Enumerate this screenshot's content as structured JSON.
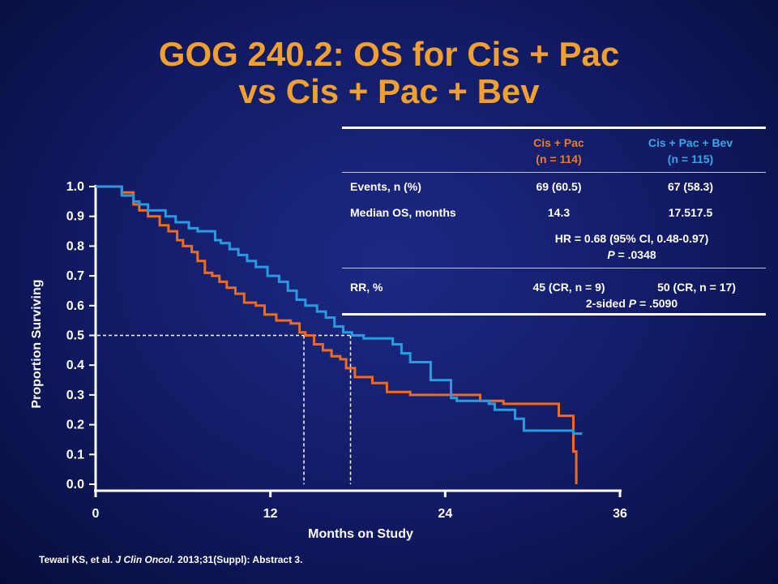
{
  "title": {
    "line1": "GOG 240.2: OS for Cis + Pac",
    "line2": "vs Cis + Pac + Bev"
  },
  "colors": {
    "title": "#f0a030",
    "cis_pac": "#f06a20",
    "cis_pac_bev": "#2a9ae0",
    "background": "#111a63"
  },
  "table": {
    "col1_header": [
      "Cis + Pac",
      "(n = 114)"
    ],
    "col2_header": [
      "Cis + Pac + Bev",
      "(n = 115)"
    ],
    "events_label": "Events, n (%)",
    "events_cp": "69 (60.5)",
    "events_cpb": "67 (58.3)",
    "median_label": "Median OS, months",
    "median_cp": "14.3",
    "median_cpb": "17.517.5",
    "hr_text": "HR = 0.68 (95% CI, 0.48-0.97)",
    "p_label": "P",
    "p_value": " = .0348",
    "rr_label": "RR, %",
    "rr_cp": "45 (CR, n = 9)",
    "rr_cpb": "50 (CR, n = 17)",
    "rr_p_prefix": "2-sided ",
    "rr_p_label": "P",
    "rr_p_value": " = .5090"
  },
  "citation": {
    "authors": "Tewari KS, et al. ",
    "journal": "J Clin Oncol.",
    "rest": " 2013;31(Suppl): Abstract 3."
  },
  "chart_data": {
    "type": "line",
    "xlabel": "Months on Study",
    "ylabel": "Proportion Surviving",
    "xlim": [
      0,
      36
    ],
    "ylim": [
      0,
      1.0
    ],
    "x_ticks": [
      "0",
      "12",
      "24",
      "36"
    ],
    "y_ticks": [
      "0.0",
      "0.1",
      "0.2",
      "0.3",
      "0.4",
      "0.5",
      "0.6",
      "0.7",
      "0.8",
      "0.9",
      "1.0"
    ],
    "median_lines": [
      {
        "series": "Cis + Pac",
        "x": 14.3,
        "y": 0.5
      },
      {
        "series": "Cis + Pac + Bev",
        "x": 17.5,
        "y": 0.5
      }
    ],
    "series": [
      {
        "name": "Cis + Pac",
        "color": "#f06a20",
        "x": [
          0,
          1.8,
          2.6,
          3.0,
          3.6,
          4.4,
          5.0,
          5.6,
          6.0,
          6.6,
          7.0,
          7.5,
          8.0,
          8.5,
          9.0,
          9.6,
          10.2,
          11.0,
          11.6,
          12.4,
          13.4,
          14.0,
          14.4,
          15.0,
          15.6,
          16.2,
          16.8,
          17.2,
          17.8,
          19.0,
          20.0,
          21.6,
          26.4,
          28.0,
          31.8,
          32.8,
          33.0
        ],
        "y": [
          1.0,
          0.98,
          0.94,
          0.92,
          0.9,
          0.87,
          0.85,
          0.82,
          0.8,
          0.78,
          0.75,
          0.71,
          0.7,
          0.68,
          0.66,
          0.64,
          0.61,
          0.6,
          0.57,
          0.55,
          0.54,
          0.51,
          0.5,
          0.47,
          0.45,
          0.43,
          0.42,
          0.39,
          0.36,
          0.34,
          0.31,
          0.3,
          0.28,
          0.27,
          0.23,
          0.11,
          0.0
        ]
      },
      {
        "name": "Cis + Pac + Bev",
        "color": "#2a9ae0",
        "x": [
          0,
          1.8,
          2.6,
          3.0,
          3.6,
          4.8,
          5.5,
          6.4,
          7.0,
          8.2,
          8.6,
          9.2,
          9.8,
          10.4,
          11.0,
          11.8,
          12.6,
          13.2,
          13.8,
          14.4,
          15.2,
          15.8,
          16.4,
          17.0,
          17.6,
          18.4,
          20.4,
          21.0,
          21.6,
          23.0,
          24.4,
          24.8,
          27.0,
          27.4,
          28.8,
          29.4,
          32.2,
          32.8,
          33.4
        ],
        "y": [
          1.0,
          0.97,
          0.95,
          0.94,
          0.92,
          0.9,
          0.88,
          0.86,
          0.85,
          0.82,
          0.81,
          0.79,
          0.77,
          0.75,
          0.73,
          0.7,
          0.68,
          0.65,
          0.62,
          0.6,
          0.58,
          0.56,
          0.53,
          0.51,
          0.5,
          0.49,
          0.47,
          0.44,
          0.41,
          0.35,
          0.29,
          0.28,
          0.27,
          0.25,
          0.22,
          0.18,
          0.18,
          0.17,
          0.17
        ]
      }
    ]
  }
}
